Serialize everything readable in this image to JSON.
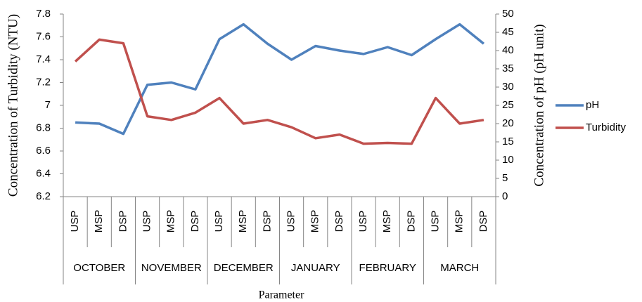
{
  "chart_data": {
    "type": "line",
    "y_label": "Concentration of Turbidity (NTU)",
    "y2_label": "Concentration of pH (pH unit)",
    "x_label": "Parameter",
    "categories": [
      "USP",
      "MSP",
      "DSP",
      "USP",
      "MSP",
      "DSP",
      "USP",
      "MSP",
      "DSP",
      "USP",
      "MSP",
      "DSP",
      "USP",
      "MSP",
      "DSP",
      "USP",
      "MSP",
      "DSP"
    ],
    "category_groups": [
      "OCTOBER",
      "NOVEMBER",
      "DECEMBER",
      "JANUARY",
      "FEBRUARY",
      "MARCH"
    ],
    "series": [
      {
        "name": "pH",
        "color": "#4f81bd",
        "axis": "y",
        "values": [
          6.85,
          6.84,
          6.75,
          7.18,
          7.2,
          7.14,
          7.58,
          7.71,
          7.54,
          7.4,
          7.52,
          7.48,
          7.45,
          7.51,
          7.44,
          7.58,
          7.71,
          7.54
        ]
      },
      {
        "name": "Turbidity",
        "color": "#c0504d",
        "axis": "y2",
        "values": [
          37,
          43,
          42,
          22,
          21,
          23,
          27,
          20,
          21,
          19,
          16,
          17,
          14.5,
          14.7,
          14.5,
          27,
          20,
          21
        ]
      }
    ],
    "ylim": [
      6.2,
      7.8
    ],
    "yticks": [
      6.2,
      6.4,
      6.6,
      6.8,
      7,
      7.2,
      7.4,
      7.6,
      7.8
    ],
    "y2lim": [
      0,
      50
    ],
    "y2ticks": [
      0,
      5,
      10,
      15,
      20,
      25,
      30,
      35,
      40,
      45,
      50
    ],
    "legend": "right"
  }
}
